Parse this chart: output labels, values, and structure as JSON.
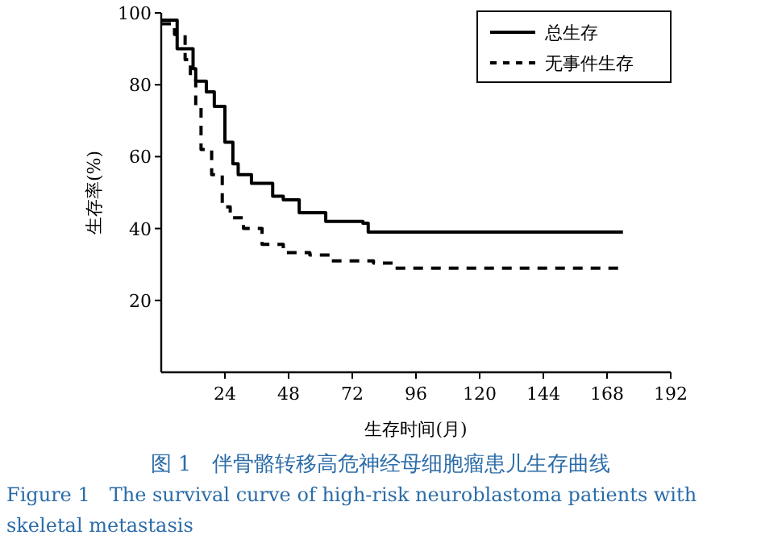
{
  "chart_data": {
    "type": "step",
    "title": "图 1　伴骨骼转移高危神经母细胞瘤患儿生存曲线",
    "xlabel": "生存时间(月)",
    "ylabel": "生存率(%)",
    "annotations": [
      "Figure 1　The survival curve of high-risk neuroblastoma patients with skeletal metastasis"
    ],
    "xlim": [
      0,
      192
    ],
    "xticks": [
      24,
      48,
      72,
      96,
      120,
      144,
      168,
      192
    ],
    "ylim": [
      0,
      100
    ],
    "yticks": [
      20,
      40,
      60,
      80,
      100
    ],
    "grid": false,
    "legend": "top right",
    "series": [
      {
        "name": "总生存",
        "color": "#000000",
        "line_style": "solid",
        "x": [
          0,
          6,
          12,
          13,
          17,
          20,
          24,
          27,
          29,
          34,
          42,
          46,
          52,
          62,
          76,
          78,
          174
        ],
        "values": [
          98,
          90,
          84.5,
          81,
          78,
          74,
          64,
          58,
          55,
          52.6,
          49,
          48,
          44.4,
          42,
          41.5,
          39,
          39
        ]
      },
      {
        "name": "无事件生存",
        "color": "#000000",
        "line_style": "dashed",
        "x": [
          0,
          5,
          9,
          11,
          13,
          15,
          19,
          23,
          26,
          31,
          38,
          46,
          56,
          64,
          80,
          88,
          174
        ],
        "values": [
          97,
          94,
          87,
          81.5,
          74,
          62,
          55,
          46,
          43,
          40,
          35.6,
          33.3,
          32.6,
          31,
          30.4,
          29,
          29
        ]
      }
    ]
  }
}
